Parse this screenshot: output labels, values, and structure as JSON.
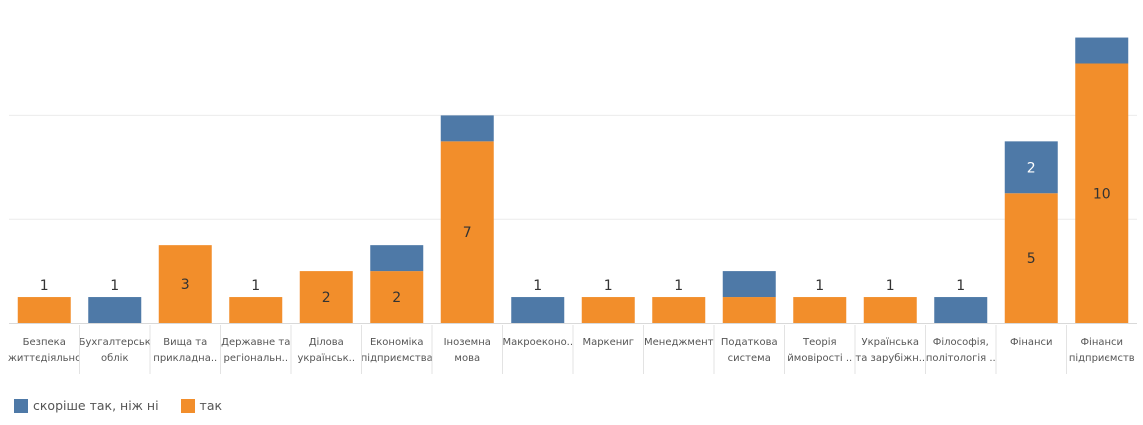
{
  "chart_data": {
    "type": "bar",
    "stacked": true,
    "categories": [
      [
        "Безпека",
        "життєдіяльнс"
      ],
      [
        "Бухгалтерськ",
        "облік"
      ],
      [
        "Вища та",
        "прикладна.."
      ],
      [
        "Державне та",
        "регіональн.."
      ],
      [
        "Ділова",
        "українськ.."
      ],
      [
        "Економіка",
        "підприємства"
      ],
      [
        "Іноземна",
        "мова"
      ],
      [
        "Макроеконо.."
      ],
      [
        "Маркениг"
      ],
      [
        "Менеджмент"
      ],
      [
        "Податкова",
        "система"
      ],
      [
        "Теорія",
        "ймовірості .."
      ],
      [
        "Українська",
        "та зарубіжн.."
      ],
      [
        "Філософія,",
        "політологія .."
      ],
      [
        "Фінанси"
      ],
      [
        "Фінанси",
        "підприємств"
      ]
    ],
    "series": [
      {
        "name": "так",
        "color": "#f28e2b",
        "values": [
          1,
          0,
          3,
          1,
          2,
          2,
          7,
          0,
          1,
          1,
          1,
          1,
          1,
          0,
          5,
          10
        ],
        "labels": [
          "",
          "",
          "3",
          "",
          "2",
          "2",
          "7",
          "",
          "",
          "",
          "",
          "",
          "",
          "",
          "5",
          "10"
        ]
      },
      {
        "name": "скоріше так, ніж ні",
        "color": "#4e79a7",
        "values": [
          0,
          1,
          0,
          0,
          0,
          1,
          1,
          1,
          0,
          0,
          1,
          0,
          0,
          1,
          2,
          1
        ],
        "labels": [
          "",
          "",
          "",
          "",
          "",
          "",
          "",
          "",
          "",
          "",
          "",
          "",
          "",
          "",
          "2",
          ""
        ]
      }
    ],
    "totals": [
      "1",
      "1",
      "",
      "1",
      "",
      "",
      "",
      "1",
      "1",
      "1",
      "",
      "1",
      "1",
      "1",
      "",
      ""
    ],
    "ylim": [
      0,
      11
    ],
    "gridlines": [
      0,
      4,
      8
    ],
    "legend": [
      {
        "label": "скоріше так, ніж ні",
        "color": "#4e79a7"
      },
      {
        "label": "так",
        "color": "#f28e2b"
      }
    ],
    "legend_position": "bottom-left",
    "grid": true
  }
}
